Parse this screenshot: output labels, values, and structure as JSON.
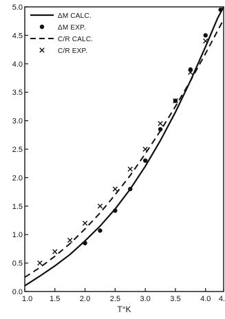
{
  "chart_data": {
    "type": "scatter",
    "xlabel": "T°K",
    "ylabel": "",
    "xlim": [
      1.0,
      4.3
    ],
    "ylim": [
      0.0,
      5.0
    ],
    "x_ticks": [
      {
        "value": 1.0,
        "label": "1.0"
      },
      {
        "value": 1.5,
        "label": "1.5"
      },
      {
        "value": 2.0,
        "label": "2.0"
      },
      {
        "value": 2.5,
        "label": "2.5"
      },
      {
        "value": 3.0,
        "label": "3.0"
      },
      {
        "value": 3.5,
        "label": "3.5"
      },
      {
        "value": 4.0,
        "label": "4.0"
      },
      {
        "value": 4.3,
        "label": "4."
      }
    ],
    "y_ticks": [
      {
        "value": 0.0,
        "label": "0.0"
      },
      {
        "value": 0.5,
        "label": "0.5"
      },
      {
        "value": 1.0,
        "label": "1.0"
      },
      {
        "value": 1.5,
        "label": "1.5"
      },
      {
        "value": 2.0,
        "label": "2.0"
      },
      {
        "value": 2.5,
        "label": "2.5"
      },
      {
        "value": 3.0,
        "label": "3.0"
      },
      {
        "value": 3.5,
        "label": "3.5"
      },
      {
        "value": 4.0,
        "label": "4.0"
      },
      {
        "value": 4.5,
        "label": "4.5"
      },
      {
        "value": 5.0,
        "label": "5.0"
      }
    ],
    "grid": false,
    "legend_position": "top-left",
    "series": [
      {
        "name": "ΔM CALC.",
        "style": "solid-line",
        "x": [
          1.0,
          1.25,
          1.5,
          1.75,
          2.0,
          2.25,
          2.5,
          2.75,
          3.0,
          3.25,
          3.5,
          3.75,
          4.0,
          4.2,
          4.3
        ],
        "y": [
          0.1,
          0.27,
          0.45,
          0.65,
          0.89,
          1.15,
          1.45,
          1.8,
          2.2,
          2.65,
          3.15,
          3.7,
          4.3,
          4.8,
          5.0
        ]
      },
      {
        "name": "ΔM EXP.",
        "style": "dot",
        "x": [
          2.0,
          2.25,
          2.5,
          2.75,
          3.0,
          3.25,
          3.5,
          3.75,
          4.0,
          4.25
        ],
        "y": [
          0.85,
          1.07,
          1.42,
          1.8,
          2.3,
          2.85,
          3.35,
          3.9,
          4.5,
          4.95
        ]
      },
      {
        "name": "C/R CALC.",
        "style": "dashed-line",
        "x": [
          1.0,
          1.25,
          1.5,
          1.75,
          2.0,
          2.25,
          2.5,
          2.75,
          3.0,
          3.25,
          3.5,
          3.75,
          4.0,
          4.3
        ],
        "y": [
          0.25,
          0.42,
          0.62,
          0.84,
          1.1,
          1.38,
          1.7,
          2.04,
          2.42,
          2.82,
          3.25,
          3.7,
          4.18,
          4.78
        ]
      },
      {
        "name": "C/R EXP.",
        "style": "cross",
        "x": [
          1.25,
          1.5,
          1.75,
          2.0,
          2.25,
          2.5,
          2.75,
          3.0,
          3.25,
          3.5,
          3.75,
          4.0
        ],
        "y": [
          0.5,
          0.7,
          0.9,
          1.2,
          1.5,
          1.8,
          2.15,
          2.5,
          2.95,
          3.35,
          3.85,
          4.4
        ]
      }
    ]
  }
}
